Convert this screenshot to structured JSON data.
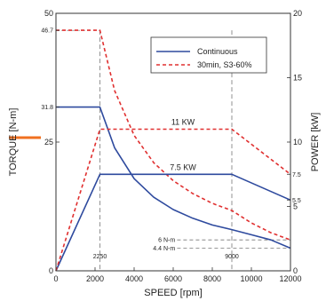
{
  "chart_data": {
    "type": "line",
    "xlabel": "SPEED [rpm]",
    "ylabel": "TORQUE  [N-m]",
    "y2label": "POWER  [kW]",
    "xlim": [
      0,
      12000
    ],
    "ylim": [
      0,
      50
    ],
    "y2lim": [
      0,
      20
    ],
    "x_ticks": [
      "0",
      "2000",
      "4000",
      "6000",
      "8000",
      "10000",
      "12000"
    ],
    "y_ticks": [
      "0",
      "25",
      "50"
    ],
    "y_special_ticks": [
      "31.8",
      "46.7"
    ],
    "y2_ticks": [
      "0",
      "5",
      "10",
      "15",
      "20"
    ],
    "y2_special_ticks": [
      "5.5",
      "7.5"
    ],
    "legend": [
      "Continuous",
      "30min, S3-60%"
    ],
    "legend_position": "top-right",
    "colors": {
      "continuous": "#2e4a9e",
      "s3": "#e03030",
      "guide": "#777777",
      "accent": "#f07020"
    },
    "series": [
      {
        "name": "Continuous",
        "axis": "torque",
        "x": [
          0,
          2250,
          3000,
          4000,
          5000,
          6000,
          7000,
          8000,
          9000,
          10000,
          11000,
          12000
        ],
        "values": [
          31.8,
          31.8,
          23.9,
          17.9,
          14.3,
          11.9,
          10.2,
          8.9,
          8.0,
          7.0,
          6.0,
          4.4
        ]
      },
      {
        "name": "30min, S3-60%",
        "axis": "torque",
        "x": [
          0,
          2250,
          3000,
          4000,
          5000,
          6000,
          7000,
          8000,
          9000,
          10000,
          11000,
          12000
        ],
        "values": [
          46.7,
          46.7,
          35.0,
          26.3,
          21.0,
          17.5,
          15.0,
          13.1,
          11.7,
          9.3,
          7.4,
          6.0
        ]
      },
      {
        "name": "Continuous",
        "axis": "power",
        "x": [
          0,
          2250,
          9000,
          12000
        ],
        "values": [
          0,
          7.5,
          7.5,
          5.5
        ]
      },
      {
        "name": "30min, S3-60%",
        "axis": "power",
        "x": [
          0,
          2250,
          9000,
          12000
        ],
        "values": [
          0,
          11,
          11,
          7.5
        ]
      }
    ],
    "annotations": [
      {
        "text": "11 KW",
        "x": 6500,
        "y2": 11
      },
      {
        "text": "7.5 KW",
        "x": 6500,
        "y2": 7.5
      },
      {
        "text": "6 N-m",
        "x": 9000,
        "y": 6
      },
      {
        "text": "4.4 N-m",
        "x": 9000,
        "y": 4.4
      },
      {
        "text": "2250",
        "x": 2250
      },
      {
        "text": "9000",
        "x": 9000
      }
    ]
  }
}
